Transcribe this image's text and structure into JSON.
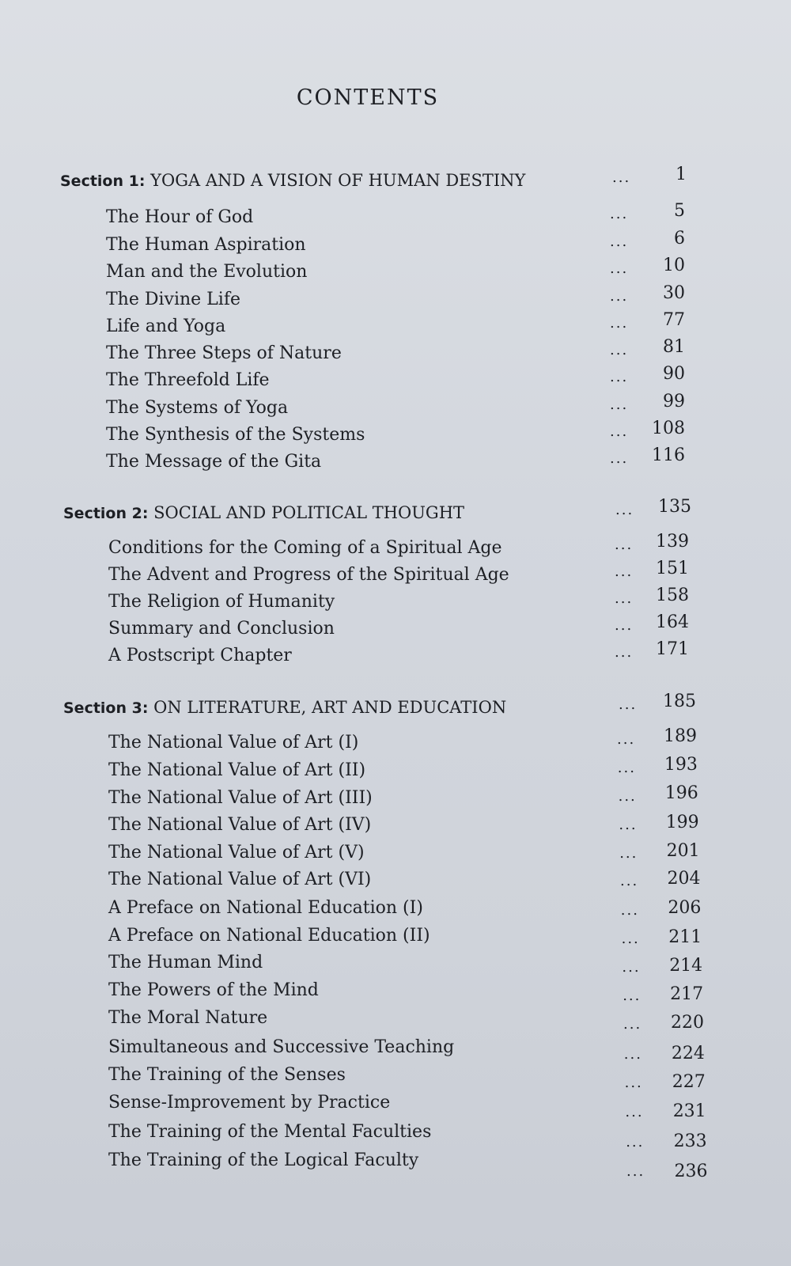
{
  "title": "CONTENTS",
  "leader": "...",
  "sections": [
    {
      "label": "Section 1:",
      "heading": "YOGA AND A VISION OF HUMAN DESTINY",
      "page": "1",
      "entries": [
        {
          "title": "The Hour of God",
          "page": "5"
        },
        {
          "title": "The Human Aspiration",
          "page": "6"
        },
        {
          "title": "Man and the Evolution",
          "page": "10"
        },
        {
          "title": "The Divine Life",
          "page": "30"
        },
        {
          "title": "Life and Yoga",
          "page": "77"
        },
        {
          "title": "The Three Steps of Nature",
          "page": "81"
        },
        {
          "title": "The Threefold Life",
          "page": "90"
        },
        {
          "title": "The Systems of Yoga",
          "page": "99"
        },
        {
          "title": "The Synthesis of the Systems",
          "page": "108"
        },
        {
          "title": "The Message of the Gita",
          "page": "116"
        }
      ]
    },
    {
      "label": "Section 2:",
      "heading": "SOCIAL AND POLITICAL THOUGHT",
      "page": "135",
      "entries": [
        {
          "title": "Conditions for the Coming of a Spiritual Age",
          "page": "139"
        },
        {
          "title": "The Advent and Progress of the Spiritual Age",
          "page": "151"
        },
        {
          "title": "The Religion of Humanity",
          "page": "158"
        },
        {
          "title": "Summary and Conclusion",
          "page": "164"
        },
        {
          "title": "A Postscript Chapter",
          "page": "171"
        }
      ]
    },
    {
      "label": "Section 3:",
      "heading": "ON LITERATURE, ART AND EDUCATION",
      "page": "185",
      "entries": [
        {
          "title": "The National Value of Art (I)",
          "page": "189"
        },
        {
          "title": "The National Value of Art (II)",
          "page": "193"
        },
        {
          "title": "The National Value of Art (III)",
          "page": "196"
        },
        {
          "title": "The National Value of Art (IV)",
          "page": "199"
        },
        {
          "title": "The National Value of Art (V)",
          "page": "201"
        },
        {
          "title": "The National Value of Art (VI)",
          "page": "204"
        },
        {
          "title": "A Preface on National Education (I)",
          "page": "206"
        },
        {
          "title": "A Preface on National Education (II)",
          "page": "211"
        },
        {
          "title": "The Human Mind",
          "page": "214"
        },
        {
          "title": "The Powers of the Mind",
          "page": "217"
        },
        {
          "title": "The Moral Nature",
          "page": "220"
        },
        {
          "title": "Simultaneous and Successive Teaching",
          "page": "224"
        },
        {
          "title": "The Training of the Senses",
          "page": "227"
        },
        {
          "title": "Sense-Improvement by Practice",
          "page": "231"
        },
        {
          "title": "The Training of the Mental Faculties",
          "page": "233"
        },
        {
          "title": "The Training of the Logical Faculty",
          "page": "236"
        }
      ]
    }
  ]
}
